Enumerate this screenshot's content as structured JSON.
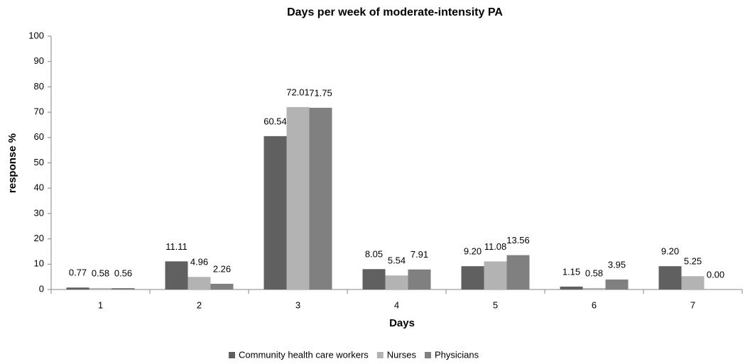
{
  "chart_data": {
    "type": "bar",
    "title": "Days per week of moderate-intensity PA",
    "xlabel": "Days",
    "ylabel": "response %",
    "categories": [
      "1",
      "2",
      "3",
      "4",
      "5",
      "6",
      "7"
    ],
    "series": [
      {
        "name": "Community health care workers",
        "color": "#606060",
        "values": [
          0.77,
          11.11,
          60.54,
          8.05,
          9.2,
          1.15,
          9.2
        ],
        "value_labels": [
          "0.77",
          "11.11",
          "60.54",
          "8.05",
          "9.20",
          "1.15",
          "9.20"
        ]
      },
      {
        "name": "Nurses",
        "color": "#b3b3b3",
        "values": [
          0.58,
          4.96,
          72.01,
          5.54,
          11.08,
          0.58,
          5.25
        ],
        "value_labels": [
          "0.58",
          "4.96",
          "72.01",
          "5.54",
          "11.08",
          "0.58",
          "5.25"
        ]
      },
      {
        "name": "Physicians",
        "color": "#808080",
        "values": [
          0.56,
          2.26,
          71.75,
          7.91,
          13.56,
          3.95,
          0
        ],
        "value_labels": [
          "0.56",
          "2.26",
          "71.75",
          "7.91",
          "13.56",
          "3.95",
          "0.00"
        ]
      }
    ],
    "ylim": [
      0,
      100
    ],
    "yticks": [
      0,
      10,
      20,
      30,
      40,
      50,
      60,
      70,
      80,
      90,
      100
    ],
    "legend": "bottom"
  }
}
